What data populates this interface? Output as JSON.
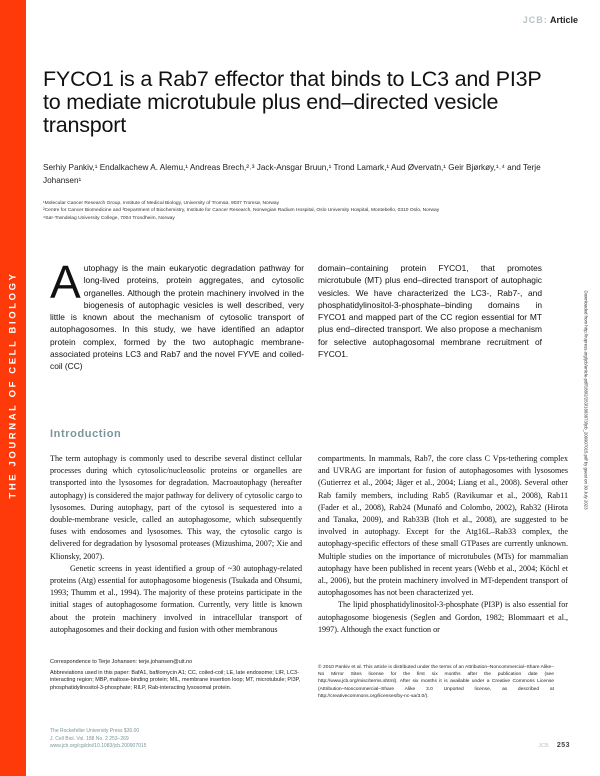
{
  "sidebar_label": "THE JOURNAL OF CELL BIOLOGY",
  "header": {
    "journal": "JCB:",
    "section": "Article"
  },
  "title": "FYCO1 is a Rab7 effector that binds to LC3 and PI3P to mediate microtubule plus end–directed vesicle transport",
  "authors": "Serhiy Pankiv,¹ Endalkachew A. Alemu,¹ Andreas Brech,²˒³ Jack-Ansgar Bruun,¹ Trond Lamark,¹ Aud Øvervatn,¹ Geir Bjørkøy,¹˒⁴ and Terje Johansen¹",
  "affiliations": [
    "¹Molecular Cancer Research Group, Institute of Medical Biology, University of Tromsø, 9037 Tromsø, Norway",
    "²Centre for Cancer Biomedicine and ³Department of Biochemistry, Institute for Cancer Research, Norwegian Radium Hospital, Oslo University Hospital, Montebello, 0310 Oslo, Norway",
    "⁴Sør-Trøndelag University College, 7004 Trondheim, Norway"
  ],
  "abstract": {
    "dropcap": "A",
    "left": "utophagy is the main eukaryotic degradation pathway for long-lived proteins, protein aggregates, and cytosolic organelles. Although the protein machinery involved in the biogenesis of autophagic vesicles is well described, very little is known about the mechanism of cytosolic transport of autophagosomes. In this study, we have identified an adaptor protein complex, formed by the two autophagic membrane-associated proteins LC3 and Rab7 and the novel FYVE and coiled-coil (CC)",
    "right": "domain–containing protein FYCO1, that promotes microtubule (MT) plus end–directed transport of autophagic vesicles. We have characterized the LC3-, Rab7-, and phosphatidylinositol-3-phosphate–binding domains in FYCO1 and mapped part of the CC region essential for MT plus end–directed transport. We also propose a mechanism for selective autophagosomal membrane recruitment of FYCO1."
  },
  "intro_heading": "Introduction",
  "body": {
    "left": [
      "The term autophagy is commonly used to describe several distinct cellular processes during which cytosolic/nucleosolic proteins or organelles are transported into the lysosomes for degradation. Macroautophagy (hereafter autophagy) is considered the major pathway for delivery of cytosolic cargo to lysosomes. During autophagy, part of the cytosol is sequestered into a double-membrane vesicle, called an autophagosome, which subsequently fuses with endosomes and lysosomes. This way, the cytosolic cargo is delivered for degradation by lysosomal proteases (Mizushima, 2007; Xie and Klionsky, 2007).",
      "Genetic screens in yeast identified a group of ~30 autophagy-related proteins (Atg) essential for autophagosome biogenesis (Tsukada and Ohsumi, 1993; Thumm et al., 1994). The majority of these proteins participate in the initial stages of autophagosome formation. Currently, very little is known about the protein machinery involved in intracellular transport of autophagosomes and their docking and fusion with other membranous"
    ],
    "right": [
      "compartments. In mammals, Rab7, the core class C Vps-tethering complex and UVRAG are important for fusion of autophagosomes with lysosomes (Gutierrez et al., 2004; Jäger et al., 2004; Liang et al., 2008). Several other Rab family members, including Rab5 (Ravikumar et al., 2008), Rab11 (Fader et al., 2008), Rab24 (Munafó and Colombo, 2002), Rab32 (Hirota and Tanaka, 2009), and Rab33B (Itoh et al., 2008), are suggested to be involved in autophagy. Except for the Atg16L–Rab33 complex, the autophagy-specific effectors of these small GTPases are currently unknown. Multiple studies on the importance of microtubules (MTs) for mammalian autophagy have been published in recent years (Webb et al., 2004; Köchl et al., 2006), but the protein machinery involved in MT-dependent transport of autophagosomes has not been characterized yet.",
      "The lipid phosphatidylinositol-3-phosphate (PI3P) is also essential for autophagosome biogenesis (Seglen and Gordon, 1982; Blommaart et al., 1997). Although the exact function or"
    ]
  },
  "correspondence": "Correspondence to Terje Johansen: terje.johansen@uit.no",
  "abbreviations": "Abbreviations used in this paper: BafA1, bafilomycin A1; CC, coiled-coil; LE, late endosome; LIR, LC3-interacting region; MBP, maltose-binding protein; MIL, membrane insertion loop; MT, microtubule; PI3P, phosphatidylinositol-3-phosphate; RILP, Rab-interacting lysosomal protein.",
  "license": "© 2010 Pankiv et al. This article is distributed under the terms of an Attribution–Noncommercial–Share Alike–No Mirror Sites license for the first six months after the publication date (see http://www.jcb.org/misc/terms.shtml). After six months it is available under a Creative Commons License (Attribution–Noncommercial–Share Alike 3.0 Unported license, as described at http://creativecommons.org/licenses/by-nc-sa/3.0/).",
  "footer": {
    "line1": "The Rockefeller University Press   $30.00",
    "line2": "J. Cell Biol. Vol. 188 No. 2   253–269",
    "line3": "www.jcb.org/cgi/doi/10.1083/jcb.200907015"
  },
  "page": {
    "journal": "JCB",
    "number": "253"
  },
  "download_note": "Downloaded from http://rupress.org/jcb/article-pdf/188/2/253/1883873/jcb_200907015.pdf by guest on 30 July 2023",
  "colors": {
    "sidebar": "#ff3a0a",
    "heading": "#7a969c"
  }
}
